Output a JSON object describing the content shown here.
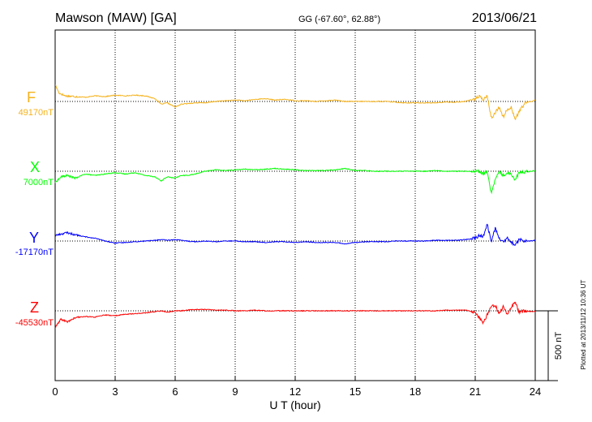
{
  "header": {
    "station": "Mawson (MAW)  [GA]",
    "coords": "GG (-67.60°,  62.88°)",
    "date": "2013/06/21"
  },
  "chart_data": {
    "type": "line",
    "title": "Mawson (MAW)  [GA]",
    "xlabel": "U T (hour)",
    "xlim": [
      0,
      24
    ],
    "xticks": [
      0,
      3,
      6,
      9,
      12,
      15,
      18,
      21,
      24
    ],
    "xtick_labels": [
      "0",
      "3",
      "6",
      "9",
      "12",
      "15",
      "18",
      "21",
      "24"
    ],
    "grid": true,
    "scale_bar_label": "500 nT",
    "scale_bar_nT": 500,
    "units_per_nT_note": "each series plotted as deviation (nT) from its baseline",
    "series": [
      {
        "name": "F",
        "baseline_label": "49170nT",
        "color": "#f5b21c",
        "x": [
          0,
          0.2,
          0.5,
          1,
          1.5,
          2,
          2.5,
          3,
          3.5,
          4,
          4.5,
          5,
          5.3,
          5.6,
          6,
          6.3,
          6.6,
          7,
          7.5,
          8,
          8.5,
          9,
          9.5,
          10,
          10.5,
          11,
          11.5,
          12,
          12.5,
          13,
          13.5,
          14,
          14.5,
          15,
          15.5,
          16,
          16.5,
          17,
          17.5,
          18,
          18.5,
          19,
          19.5,
          20,
          20.5,
          21,
          21.2,
          21.4,
          21.6,
          21.8,
          22,
          22.2,
          22.4,
          22.6,
          22.8,
          23,
          23.2,
          23.5,
          23.8,
          24
        ],
        "values": [
          120,
          60,
          40,
          35,
          30,
          40,
          35,
          45,
          40,
          45,
          40,
          20,
          -20,
          -10,
          -40,
          -20,
          -15,
          -10,
          -10,
          0,
          5,
          10,
          5,
          15,
          20,
          10,
          15,
          5,
          5,
          0,
          5,
          10,
          0,
          0,
          0,
          0,
          0,
          -5,
          -10,
          -10,
          -10,
          -10,
          -5,
          -5,
          0,
          20,
          35,
          10,
          40,
          -120,
          -80,
          -40,
          -110,
          -60,
          -40,
          -130,
          -70,
          -10,
          0,
          10
        ]
      },
      {
        "name": "X",
        "baseline_label": "7000nT",
        "color": "#00ff00",
        "x": [
          0,
          0.3,
          0.6,
          1,
          1.5,
          2,
          2.5,
          3,
          3.5,
          4,
          4.5,
          5,
          5.3,
          5.6,
          6,
          6.3,
          6.6,
          7,
          7.5,
          8,
          8.5,
          9,
          9.5,
          10,
          10.5,
          11,
          11.5,
          12,
          12.5,
          13,
          13.5,
          14,
          14.5,
          15,
          15.5,
          16,
          16.5,
          17,
          17.5,
          18,
          18.5,
          19,
          19.5,
          20,
          20.5,
          21,
          21.2,
          21.4,
          21.6,
          21.8,
          22,
          22.2,
          22.4,
          22.6,
          22.8,
          23,
          23.2,
          23.5,
          23.8,
          24
        ],
        "values": [
          -80,
          -40,
          -30,
          -50,
          -20,
          -30,
          -20,
          -10,
          -20,
          -10,
          -30,
          -40,
          -70,
          -40,
          -50,
          -30,
          -30,
          -20,
          0,
          10,
          5,
          10,
          15,
          10,
          15,
          20,
          15,
          10,
          5,
          5,
          5,
          10,
          20,
          5,
          5,
          0,
          0,
          0,
          0,
          0,
          0,
          5,
          0,
          0,
          0,
          0,
          0,
          -20,
          0,
          -160,
          -60,
          0,
          -30,
          -10,
          -20,
          -60,
          -10,
          -5,
          0,
          5
        ]
      },
      {
        "name": "Y",
        "baseline_label": "-17170nT",
        "color": "#0000ff",
        "x": [
          0,
          0.3,
          0.6,
          1,
          1.5,
          2,
          2.5,
          3,
          3.5,
          4,
          4.5,
          5,
          5.3,
          5.6,
          6,
          6.3,
          6.6,
          7,
          7.5,
          8,
          8.5,
          9,
          9.5,
          10,
          10.5,
          11,
          11.5,
          12,
          12.5,
          13,
          13.5,
          14,
          14.5,
          15,
          15.5,
          16,
          16.5,
          17,
          17.5,
          18,
          18.5,
          19,
          19.5,
          20,
          20.5,
          21,
          21.2,
          21.4,
          21.6,
          21.8,
          22,
          22.2,
          22.4,
          22.6,
          22.8,
          23,
          23.2,
          23.5,
          23.8,
          24
        ],
        "values": [
          40,
          50,
          60,
          45,
          30,
          20,
          0,
          -15,
          -10,
          -5,
          0,
          5,
          10,
          5,
          10,
          5,
          0,
          -5,
          0,
          -5,
          0,
          0,
          -5,
          -5,
          -10,
          -5,
          -5,
          -10,
          -5,
          -10,
          -10,
          -10,
          -20,
          -10,
          -5,
          -5,
          -5,
          0,
          0,
          0,
          0,
          5,
          5,
          5,
          10,
          20,
          40,
          30,
          120,
          0,
          90,
          20,
          -10,
          20,
          -10,
          -30,
          10,
          0,
          0,
          5
        ]
      },
      {
        "name": "Z",
        "baseline_label": "-45530nT",
        "color": "#ff0000",
        "x": [
          0,
          0.3,
          0.6,
          1,
          1.5,
          2,
          2.5,
          3,
          3.5,
          4,
          4.5,
          5,
          5.3,
          5.6,
          6,
          6.3,
          6.6,
          7,
          7.5,
          8,
          8.5,
          9,
          9.5,
          10,
          10.5,
          11,
          11.5,
          12,
          12.5,
          13,
          13.5,
          14,
          14.5,
          15,
          15.5,
          16,
          16.5,
          17,
          17.5,
          18,
          18.5,
          19,
          19.5,
          20,
          20.5,
          21,
          21.2,
          21.4,
          21.6,
          21.8,
          22,
          22.2,
          22.4,
          22.6,
          22.8,
          23,
          23.2,
          23.5,
          23.8,
          24
        ],
        "values": [
          -120,
          -60,
          -80,
          -50,
          -40,
          -45,
          -30,
          -35,
          -25,
          -20,
          -15,
          -5,
          0,
          -10,
          0,
          0,
          5,
          10,
          10,
          5,
          5,
          0,
          0,
          5,
          0,
          0,
          0,
          0,
          0,
          0,
          0,
          0,
          0,
          0,
          0,
          0,
          0,
          0,
          0,
          0,
          0,
          0,
          5,
          5,
          5,
          -10,
          -50,
          -90,
          -30,
          30,
          40,
          -20,
          30,
          -30,
          30,
          60,
          -10,
          0,
          -5,
          -5
        ]
      }
    ]
  },
  "footer": {
    "plotted": "Plotted at 2013/11/12 10:36 UT"
  }
}
